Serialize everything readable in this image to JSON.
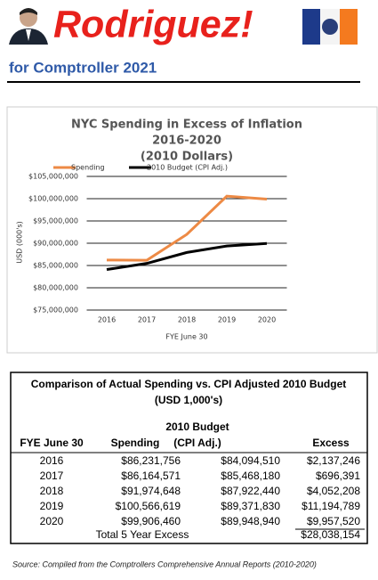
{
  "header": {
    "title": "Rodriguez!",
    "subtitle": "for Comptroller 2021"
  },
  "chart_data": {
    "type": "line",
    "title": [
      "NYC Spending in Excess of Inflation",
      "2016-2020",
      "(2010 Dollars)"
    ],
    "x_label": "FYE June 30",
    "y_label": "USD (000's)",
    "categories": [
      "2016",
      "2017",
      "2018",
      "2019",
      "2020"
    ],
    "series": [
      {
        "name": "Spending",
        "color": "#ed8a45",
        "values": [
          86231756,
          86164571,
          91974648,
          100566619,
          99906460
        ]
      },
      {
        "name": "2010  Budget  (CPI Adj.)",
        "color": "#000000",
        "values": [
          84094510,
          85468180,
          87922440,
          89371830,
          89948940
        ]
      }
    ],
    "ylim": [
      75000000,
      105000000
    ],
    "yticks": [
      {
        "value": 75000000,
        "label": "$75,000,000"
      },
      {
        "value": 80000000,
        "label": "$80,000,000"
      },
      {
        "value": 85000000,
        "label": "$85,000,000"
      },
      {
        "value": 90000000,
        "label": "$90,000,000"
      },
      {
        "value": 95000000,
        "label": "$95,000,000"
      },
      {
        "value": 100000000,
        "label": "$100,000,000"
      },
      {
        "value": 105000000,
        "label": "$105,000,000"
      }
    ],
    "grid": true,
    "legend": "top"
  },
  "table": {
    "title": [
      "Comparison of Actual Spending vs. CPI Adjusted 2010 Budget",
      "(USD 1,000's)"
    ],
    "columns": [
      "FYE June 30",
      "Spending",
      [
        "2010  Budget",
        "(CPI Adj.)"
      ],
      "Excess"
    ],
    "rows": [
      [
        "2016",
        "$86,231,756",
        "$84,094,510",
        "$2,137,246"
      ],
      [
        "2017",
        "$86,164,571",
        "$85,468,180",
        "$696,391"
      ],
      [
        "2018",
        "$91,974,648",
        "$87,922,440",
        "$4,052,208"
      ],
      [
        "2019",
        "$100,566,619",
        "$89,371,830",
        "$11,194,789"
      ],
      [
        "2020",
        "$99,906,460",
        "$89,948,940",
        "$9,957,520"
      ]
    ],
    "total": {
      "label": "Total 5 Year Excess",
      "value": "$28,038,154"
    }
  },
  "source": "Source: Compiled from the Comptrollers Comprehensive Annual Reports (2010-2020)"
}
